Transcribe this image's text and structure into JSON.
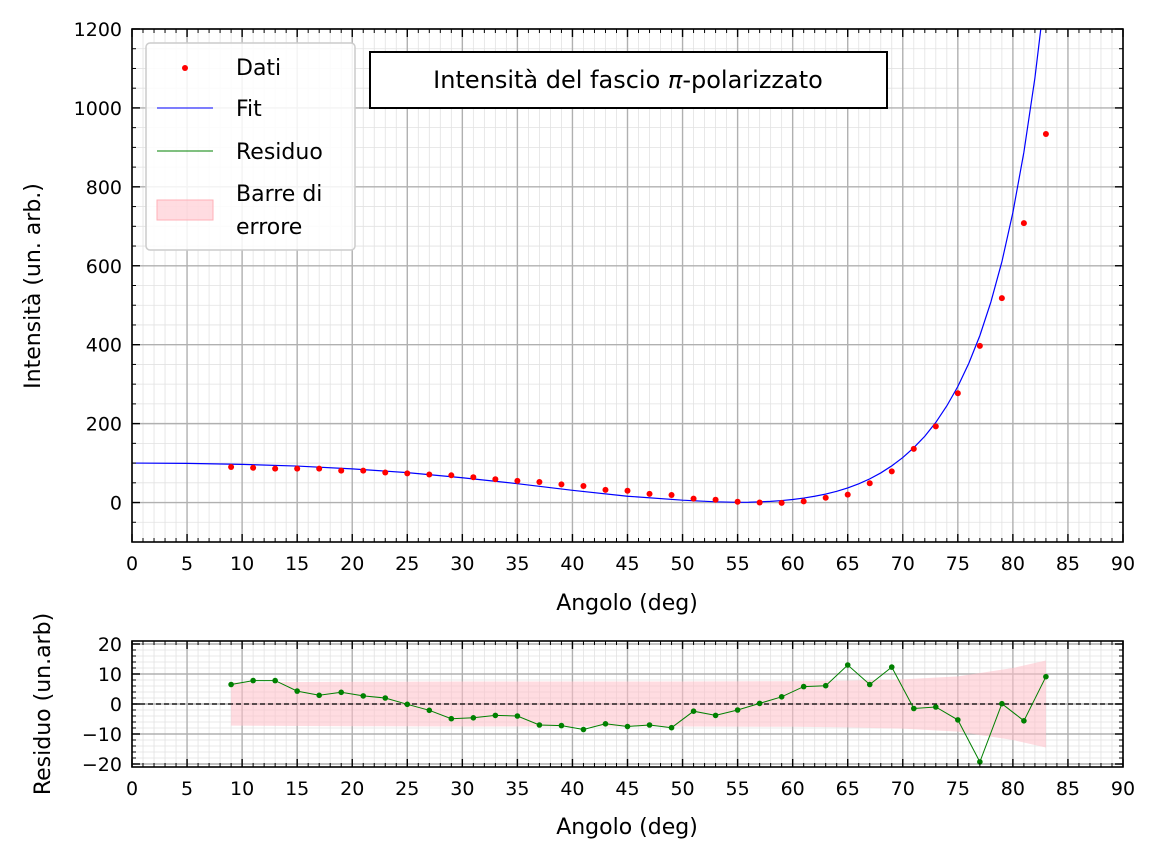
{
  "chart_data": [
    {
      "type": "scatter",
      "title_main": "Intensità del fascio ",
      "title_symbol": "π",
      "title_suffix": "-polarizzato",
      "xlabel": "Angolo (deg)",
      "ylabel": "Intensità (un. arb.)",
      "xlim": [
        0,
        90
      ],
      "ylim": [
        -100,
        1200
      ],
      "xticks": [
        0,
        5,
        10,
        15,
        20,
        25,
        30,
        35,
        40,
        45,
        50,
        55,
        60,
        65,
        70,
        75,
        80,
        85,
        90
      ],
      "yticks": [
        0,
        200,
        400,
        600,
        800,
        1000,
        1200
      ],
      "grid": true,
      "legend_position": "upper-left",
      "legend": [
        "Dati",
        "Fit",
        "Residuo",
        "Barre di",
        "errore"
      ],
      "series": [
        {
          "name": "Dati",
          "kind": "points",
          "color": "#ff0000",
          "x": [
            9,
            11,
            13,
            15,
            17,
            19,
            21,
            23,
            25,
            27,
            29,
            31,
            33,
            35,
            37,
            39,
            41,
            43,
            45,
            47,
            49,
            51,
            53,
            55,
            57,
            59,
            61,
            63,
            65,
            67,
            69,
            71,
            73,
            75,
            77,
            79,
            81,
            83
          ],
          "y": [
            90,
            88,
            86,
            86,
            86,
            81,
            81,
            76,
            74,
            71,
            69,
            64,
            59,
            55,
            52,
            46,
            42,
            32,
            30,
            22,
            19,
            10,
            7,
            2,
            0,
            -1,
            3,
            12,
            20,
            49,
            79,
            136,
            193,
            277,
            397,
            518,
            708,
            934
          ]
        },
        {
          "name": "Fit",
          "kind": "line",
          "color": "#0000ff",
          "x": [
            0,
            5,
            10,
            15,
            20,
            25,
            30,
            35,
            40,
            45,
            50,
            53,
            55,
            56,
            57,
            58,
            59,
            60,
            61,
            62,
            63,
            64,
            65,
            66,
            67,
            68,
            69,
            70,
            71,
            72,
            73,
            74,
            75,
            76,
            77,
            78,
            79,
            80,
            81,
            82,
            83,
            84,
            84.8
          ],
          "y": [
            100,
            99.2,
            96.8,
            92.4,
            85.4,
            75.8,
            62.9,
            47.8,
            30.9,
            16,
            6,
            1.9,
            0.6,
            0.8,
            1.7,
            3,
            5,
            7.7,
            11.3,
            15.9,
            21.5,
            28.5,
            37.1,
            47.4,
            60,
            75,
            93,
            114,
            139,
            168,
            203,
            245,
            294,
            353,
            423,
            508,
            610,
            735,
            888,
            1076,
            1308,
            1596,
            1200
          ]
        }
      ]
    },
    {
      "type": "line",
      "xlabel": "Angolo (deg)",
      "ylabel": "Residuo (un.arb)",
      "xlim": [
        0,
        90
      ],
      "ylim": [
        -21,
        21
      ],
      "xticks": [
        0,
        5,
        10,
        15,
        20,
        25,
        30,
        35,
        40,
        45,
        50,
        55,
        60,
        65,
        70,
        75,
        80,
        85,
        90
      ],
      "yticks": [
        -20,
        -10,
        0,
        10,
        20
      ],
      "ytick_labels": [
        "−20",
        "−10",
        "0",
        "10",
        "20"
      ],
      "grid": true,
      "series": [
        {
          "name": "Residuo",
          "color": "#008000",
          "x": [
            9,
            11,
            13,
            15,
            17,
            19,
            21,
            23,
            25,
            27,
            29,
            31,
            33,
            35,
            37,
            39,
            41,
            43,
            45,
            47,
            49,
            51,
            53,
            55,
            57,
            59,
            61,
            63,
            65,
            67,
            69,
            71,
            73,
            75,
            77,
            79,
            81,
            83
          ],
          "y": [
            6.5,
            7.8,
            7.8,
            4.3,
            2.9,
            3.9,
            2.7,
            2,
            -0.1,
            -2.1,
            -4.9,
            -4.6,
            -3.8,
            -4,
            -7,
            -7.2,
            -8.5,
            -6.6,
            -7.5,
            -7,
            -7.9,
            -2.4,
            -3.8,
            -2,
            0.2,
            2.4,
            5.8,
            6.1,
            13,
            6.5,
            12.3,
            -1.5,
            -1,
            -5.3,
            -19.3,
            0.1,
            -5.6,
            9.1
          ]
        },
        {
          "name": "Barre di errore",
          "kind": "band",
          "color": "#ffc0c8",
          "x": [
            9,
            20,
            30,
            40,
            50,
            60,
            65,
            70,
            75,
            80,
            83
          ],
          "upper": [
            7.2,
            7.4,
            7.5,
            7.5,
            7.5,
            7.6,
            7.8,
            8.2,
            9.2,
            12,
            14.5
          ],
          "lower": [
            -7.2,
            -7.4,
            -7.5,
            -7.5,
            -7.5,
            -7.6,
            -7.8,
            -8.2,
            -9.2,
            -12,
            -14.5
          ]
        }
      ]
    }
  ]
}
